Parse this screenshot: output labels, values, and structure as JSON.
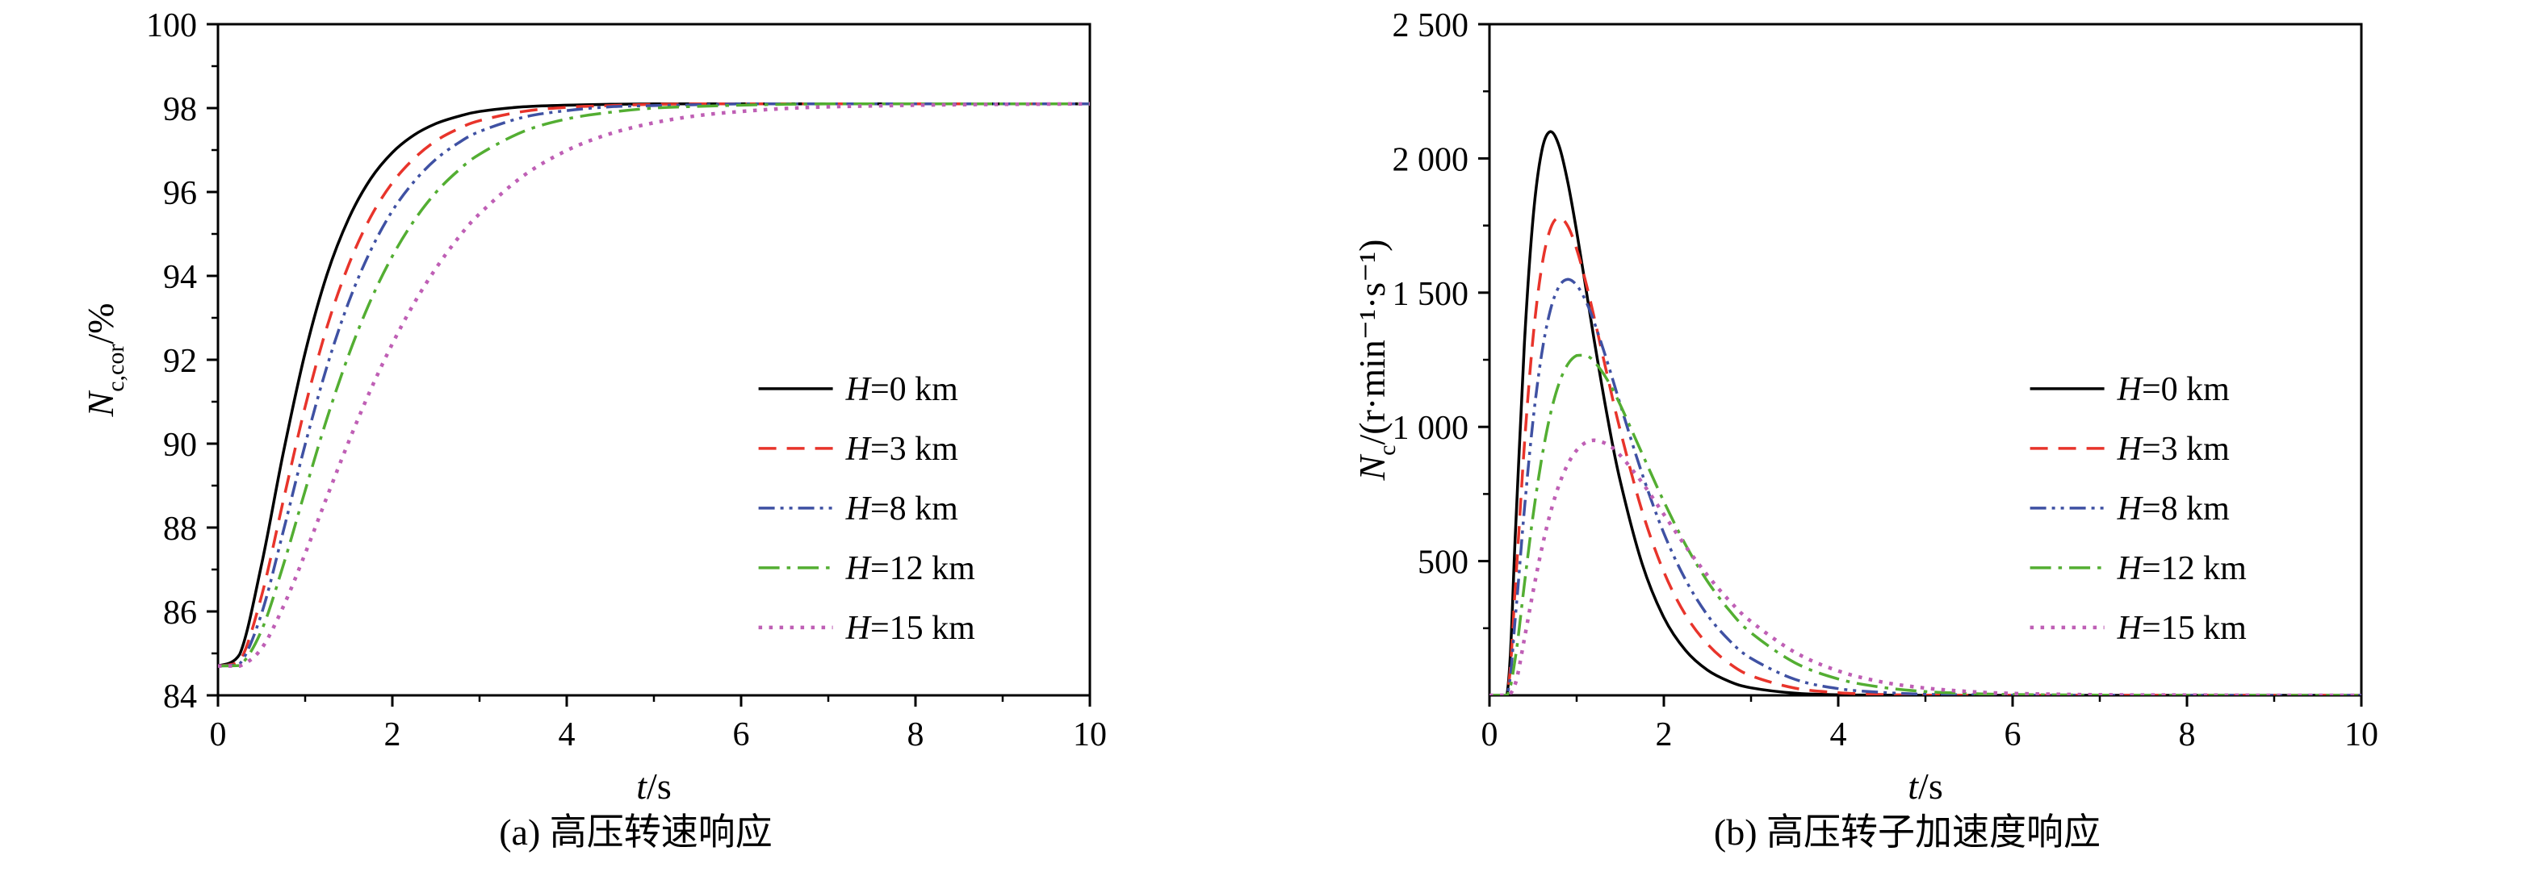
{
  "page": {
    "background": "#ffffff"
  },
  "chart_data": [
    {
      "type": "line",
      "caption": "(a) 高压转速响应",
      "xlabel": {
        "italic": "t",
        "rest": "/s"
      },
      "ylabel": {
        "italic": "N",
        "sub": "c,cor",
        "rest": "/%"
      },
      "xlim": [
        0,
        10
      ],
      "ylim": [
        84,
        100
      ],
      "xticks": [
        0,
        2,
        4,
        6,
        8,
        10
      ],
      "xtick_labels": [
        "0",
        "2",
        "4",
        "6",
        "8",
        "10"
      ],
      "x_minor_step": 1,
      "yticks": [
        84,
        86,
        88,
        90,
        92,
        94,
        96,
        98,
        100
      ],
      "ytick_labels": [
        "84",
        "86",
        "88",
        "90",
        "92",
        "94",
        "96",
        "98",
        "100"
      ],
      "y_minor_step": 1,
      "grid": false,
      "legend_position": "right-center",
      "x": [
        0,
        0.25,
        0.5,
        0.75,
        1,
        1.25,
        1.5,
        1.75,
        2,
        2.25,
        2.5,
        2.75,
        3,
        3.5,
        4,
        4.5,
        5,
        5.5,
        6,
        6.5,
        7,
        8,
        9,
        10
      ],
      "series": [
        {
          "name": "H=0 km",
          "color": "#000000",
          "line_style": "solid",
          "y": [
            84.7,
            84.98,
            87.12,
            89.79,
            92.17,
            94.03,
            95.37,
            96.31,
            96.94,
            97.36,
            97.63,
            97.8,
            97.92,
            98.03,
            98.07,
            98.09,
            98.1,
            98.1,
            98.1,
            98.1,
            98.1,
            98.1,
            98.1,
            98.1
          ]
        },
        {
          "name": "H=3 km",
          "color": "#e8342b",
          "line_style": "dash",
          "y": [
            84.7,
            84.81,
            86.37,
            88.65,
            90.88,
            92.78,
            94.27,
            95.4,
            96.22,
            96.8,
            97.22,
            97.5,
            97.7,
            97.92,
            98.02,
            98.06,
            98.09,
            98.1,
            98.1,
            98.1,
            98.1,
            98.1,
            98.1,
            98.1
          ]
        },
        {
          "name": "H=8 km",
          "color": "#3f51a3",
          "line_style": "dash-dot-dot",
          "y": [
            84.7,
            84.75,
            85.95,
            87.92,
            89.98,
            91.84,
            93.38,
            94.6,
            95.55,
            96.25,
            96.78,
            97.16,
            97.44,
            97.78,
            97.94,
            98.03,
            98.06,
            98.08,
            98.1,
            98.1,
            98.1,
            98.1,
            98.1,
            98.1
          ]
        },
        {
          "name": "H=12 km",
          "color": "#53ae32",
          "line_style": "dash-dot",
          "y": [
            84.7,
            84.71,
            85.55,
            87.11,
            88.88,
            90.6,
            92.12,
            93.41,
            94.47,
            95.32,
            95.99,
            96.5,
            96.9,
            97.44,
            97.74,
            97.9,
            98,
            98.04,
            98.07,
            98.09,
            98.1,
            98.1,
            98.1,
            98.1
          ]
        },
        {
          "name": "H=15 km",
          "color": "#bf5fb5",
          "line_style": "dot",
          "y": [
            84.7,
            84.7,
            85.12,
            86.12,
            87.38,
            88.73,
            90.05,
            91.28,
            92.38,
            93.35,
            94.18,
            94.89,
            95.48,
            96.38,
            96.99,
            97.39,
            97.65,
            97.82,
            97.92,
            97.99,
            98.03,
            98.07,
            98.09,
            98.1
          ]
        }
      ]
    },
    {
      "type": "line",
      "caption": "(b) 高压转子加速度响应",
      "xlabel": {
        "italic": "t",
        "rest": "/s"
      },
      "ylabel": {
        "italic": "N",
        "sub": "c",
        "rest": "/(r·min⁻¹·s⁻¹)"
      },
      "xlim": [
        0,
        10
      ],
      "ylim": [
        0,
        2500
      ],
      "xticks": [
        0,
        2,
        4,
        6,
        8,
        10
      ],
      "xtick_labels": [
        "0",
        "2",
        "4",
        "6",
        "8",
        "10"
      ],
      "x_minor_step": 1,
      "yticks": [
        500,
        1000,
        1500,
        2000,
        2500
      ],
      "ytick_labels": [
        "500",
        "1 000",
        "1 500",
        "2 000",
        "2 500"
      ],
      "y_minor_step": 250,
      "grid": false,
      "legend_position": "right-center",
      "x": [
        0,
        0.2,
        0.3,
        0.4,
        0.5,
        0.6,
        0.7,
        0.8,
        0.9,
        1,
        1.1,
        1.2,
        1.35,
        1.5,
        1.75,
        2,
        2.25,
        2.5,
        2.75,
        3,
        3.5,
        4,
        4.5,
        5,
        5.5,
        6,
        7,
        8,
        9,
        10
      ],
      "series": [
        {
          "name": "H=0 km",
          "color": "#000000",
          "line_style": "solid",
          "y": [
            0,
            0,
            623,
            1307,
            1778,
            2028,
            2100,
            2045,
            1909,
            1728,
            1528,
            1325,
            1042,
            798,
            491,
            290,
            167,
            94,
            52,
            28,
            8,
            2,
            1,
            0,
            0,
            0,
            0,
            0,
            0,
            0
          ]
        },
        {
          "name": "H=3 km",
          "color": "#e8342b",
          "line_style": "dash",
          "y": [
            0,
            0,
            423,
            931,
            1333,
            1597,
            1739,
            1780,
            1747,
            1662,
            1545,
            1409,
            1194,
            987,
            687,
            460,
            299,
            191,
            119,
            73,
            27,
            10,
            3,
            1,
            0,
            0,
            0,
            0,
            0,
            0
          ]
        },
        {
          "name": "H=8 km",
          "color": "#3f51a3",
          "line_style": "dash-dot-dot",
          "y": [
            0,
            0,
            303,
            691,
            1025,
            1274,
            1437,
            1524,
            1550,
            1528,
            1472,
            1391,
            1244,
            1084,
            826,
            604,
            430,
            299,
            205,
            138,
            60,
            25,
            11,
            4,
            2,
            1,
            0,
            0,
            0,
            0
          ]
        },
        {
          "name": "H=12 km",
          "color": "#53ae32",
          "line_style": "dash-dot",
          "y": [
            0,
            0,
            147,
            413,
            670,
            884,
            1049,
            1164,
            1234,
            1266,
            1267,
            1244,
            1176,
            1082,
            901,
            722,
            560,
            425,
            317,
            233,
            122,
            61,
            30,
            14,
            7,
            3,
            1,
            0,
            0,
            0
          ]
        },
        {
          "name": "H=15 km",
          "color": "#bf5fb5",
          "line_style": "dot",
          "y": [
            0,
            0,
            47,
            210,
            386,
            547,
            681,
            786,
            862,
            913,
            941,
            950,
            935,
            894,
            793,
            674,
            555,
            447,
            353,
            275,
            161,
            91,
            50,
            27,
            14,
            7,
            2,
            1,
            0,
            0
          ]
        }
      ]
    }
  ]
}
